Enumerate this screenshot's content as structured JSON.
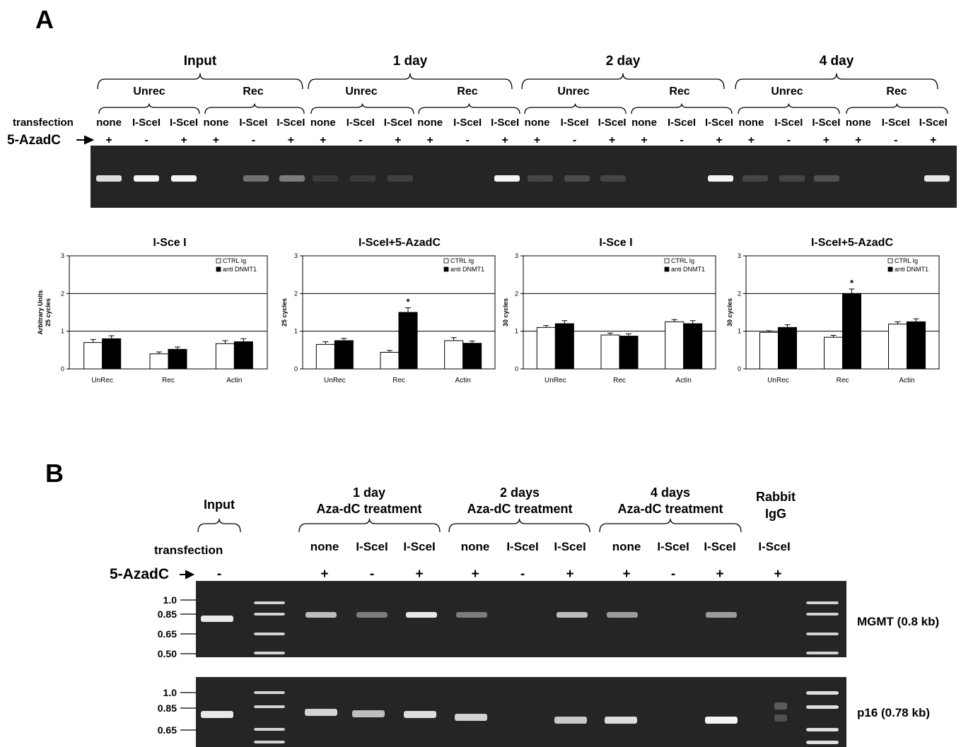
{
  "panel_a": {
    "label": "A",
    "groups": [
      "Input",
      "1 day",
      "2 day",
      "4 day"
    ],
    "subgroups": [
      "Unrec",
      "Rec"
    ],
    "transfection_label": "transfection",
    "lane_labels": [
      "none",
      "I-SceI",
      "I-SceI"
    ],
    "aza_label": "5-AzadC",
    "aza_signs": [
      "+",
      "-",
      "+"
    ]
  },
  "panel_b": {
    "label": "B",
    "input_label": "Input",
    "groups": [
      {
        "line1": "1 day",
        "line2": "Aza-dC treatment"
      },
      {
        "line1": "2 days",
        "line2": "Aza-dC treatment"
      },
      {
        "line1": "4 days",
        "line2": "Aza-dC treatment"
      }
    ],
    "rabbit_label": {
      "line1": "Rabbit",
      "line2": "IgG"
    },
    "transfection_label": "transfection",
    "lane_labels": [
      "none",
      "I-SceI",
      "I-SceI"
    ],
    "rabbit_lane": "I-SceI",
    "aza_label": "5-AzadC",
    "input_sign": "-",
    "aza_signs": [
      "+",
      "-",
      "+"
    ],
    "rabbit_sign": "+",
    "gel1": {
      "label": "MGMT (0.8 kb)",
      "markers": [
        "1.0",
        "0.85",
        "0.65",
        "0.50"
      ]
    },
    "gel2": {
      "label": "p16 (0.78 kb)",
      "markers": [
        "1.0",
        "0.85",
        "0.65"
      ]
    }
  },
  "chart_data": [
    {
      "type": "bar",
      "title": "I-Sce I",
      "ylabel": [
        "Arbitrary Units",
        "25 cycles"
      ],
      "categories": [
        "UnRec",
        "Rec",
        "Actin"
      ],
      "ylim": [
        0,
        3
      ],
      "yticks": [
        "0",
        "1",
        "2",
        "3"
      ],
      "series": [
        {
          "name": "CTRL Ig",
          "color": "#ffffff",
          "values": [
            0.7,
            0.4,
            0.67
          ],
          "errors": [
            0.08,
            0.05,
            0.08
          ]
        },
        {
          "name": "anti DNMT1",
          "color": "#000000",
          "values": [
            0.8,
            0.52,
            0.72
          ],
          "errors": [
            0.08,
            0.06,
            0.08
          ]
        }
      ],
      "significance": []
    },
    {
      "type": "bar",
      "title": "I-SceI+5-AzadC",
      "ylabel": [
        "25 cycles"
      ],
      "categories": [
        "UnRec",
        "Rec",
        "Actin"
      ],
      "ylim": [
        0,
        3
      ],
      "yticks": [
        "0",
        "1",
        "2",
        "3"
      ],
      "series": [
        {
          "name": "CTRL Ig",
          "color": "#ffffff",
          "values": [
            0.65,
            0.44,
            0.75
          ],
          "errors": [
            0.07,
            0.05,
            0.08
          ]
        },
        {
          "name": "anti DNMT1",
          "color": "#000000",
          "values": [
            0.75,
            1.5,
            0.68
          ],
          "errors": [
            0.06,
            0.12,
            0.06
          ]
        }
      ],
      "significance": [
        {
          "category": "Rec",
          "series": "anti DNMT1",
          "mark": "*"
        }
      ]
    },
    {
      "type": "bar",
      "title": "I-Sce I",
      "ylabel": [
        "30 cycles"
      ],
      "categories": [
        "UnRec",
        "Rec",
        "Actin"
      ],
      "ylim": [
        0,
        3
      ],
      "yticks": [
        "0",
        "1",
        "2",
        "3"
      ],
      "series": [
        {
          "name": "CTRL Ig",
          "color": "#ffffff",
          "values": [
            1.1,
            0.9,
            1.25
          ],
          "errors": [
            0.05,
            0.05,
            0.06
          ]
        },
        {
          "name": "anti DNMT1",
          "color": "#000000",
          "values": [
            1.2,
            0.87,
            1.2
          ],
          "errors": [
            0.08,
            0.06,
            0.08
          ]
        }
      ],
      "significance": []
    },
    {
      "type": "bar",
      "title": "I-SceI+5-AzadC",
      "ylabel": [
        "30 cycles"
      ],
      "categories": [
        "UnRec",
        "Rec",
        "Actin"
      ],
      "ylim": [
        0,
        3
      ],
      "yticks": [
        "0",
        "1",
        "2",
        "3"
      ],
      "series": [
        {
          "name": "CTRL Ig",
          "color": "#ffffff",
          "values": [
            0.97,
            0.84,
            1.19
          ],
          "errors": [
            0.04,
            0.05,
            0.06
          ]
        },
        {
          "name": "anti DNMT1",
          "color": "#000000",
          "values": [
            1.1,
            2.0,
            1.25
          ],
          "errors": [
            0.07,
            0.12,
            0.08
          ]
        }
      ],
      "significance": [
        {
          "category": "Rec",
          "series": "anti DNMT1",
          "mark": "*"
        }
      ]
    }
  ]
}
